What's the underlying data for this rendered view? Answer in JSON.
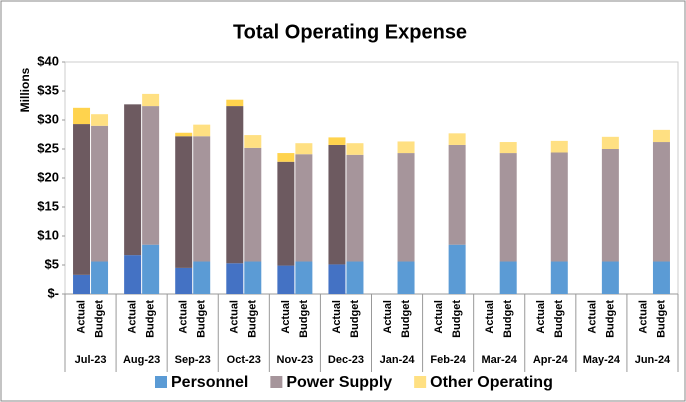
{
  "chart_data": {
    "type": "bar",
    "stacked": true,
    "title": "Total Operating Expense",
    "y_label": "Millions",
    "groups": [
      "Jul-23",
      "Aug-23",
      "Sep-23",
      "Oct-23",
      "Nov-23",
      "Dec-23",
      "Jan-24",
      "Feb-24",
      "Mar-24",
      "Apr-24",
      "May-24",
      "Jun-24"
    ],
    "categories": [
      "Actual",
      "Budget",
      "Actual",
      "Budget",
      "Actual",
      "Budget",
      "Actual",
      "Budget",
      "Actual",
      "Budget",
      "Actual",
      "Budget",
      "Actual",
      "Budget",
      "Actual",
      "Budget",
      "Actual",
      "Budget",
      "Actual",
      "Budget",
      "Actual",
      "Budget",
      "Actual",
      "Budget"
    ],
    "series": [
      {
        "name": "Personnel",
        "color": "#5b9bd5",
        "actual_color": "#4472c4",
        "values": [
          3.3,
          5.6,
          6.7,
          8.5,
          4.5,
          5.6,
          5.3,
          5.6,
          4.9,
          5.6,
          5.1,
          5.6,
          null,
          5.6,
          null,
          8.5,
          null,
          5.6,
          null,
          5.6,
          null,
          5.6,
          null,
          5.6
        ]
      },
      {
        "name": "Power Supply",
        "color": "#a6959b",
        "actual_color": "#6d5a60",
        "values": [
          26.0,
          23.4,
          26.0,
          23.9,
          22.7,
          21.6,
          27.1,
          19.6,
          17.9,
          18.5,
          20.6,
          18.4,
          null,
          18.7,
          null,
          17.2,
          null,
          18.7,
          null,
          18.8,
          null,
          19.4,
          null,
          20.6
        ]
      },
      {
        "name": "Other Operating",
        "color": "#ffe082",
        "actual_color": "#ffd34d",
        "values": [
          2.8,
          2.0,
          0,
          2.1,
          0.6,
          2.0,
          1.1,
          2.2,
          1.5,
          1.9,
          1.3,
          2.0,
          null,
          2.0,
          null,
          2.0,
          null,
          1.9,
          null,
          2.0,
          null,
          2.1,
          null,
          2.1
        ]
      }
    ],
    "ylim": [
      0,
      40
    ],
    "yticks": [
      {
        "value": 0,
        "label": "$-"
      },
      {
        "value": 5,
        "label": "$5"
      },
      {
        "value": 10,
        "label": "$10"
      },
      {
        "value": 15,
        "label": "$15"
      },
      {
        "value": 20,
        "label": "$20"
      },
      {
        "value": 25,
        "label": "$25"
      },
      {
        "value": 30,
        "label": "$30"
      },
      {
        "value": 35,
        "label": "$35"
      },
      {
        "value": 40,
        "label": "$40"
      }
    ],
    "legend": "bottom"
  }
}
